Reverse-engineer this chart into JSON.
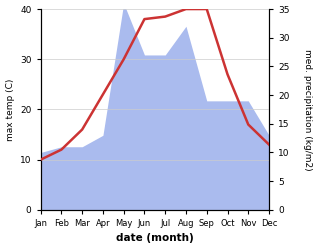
{
  "months": [
    "Jan",
    "Feb",
    "Mar",
    "Apr",
    "May",
    "Jun",
    "Jul",
    "Aug",
    "Sep",
    "Oct",
    "Nov",
    "Dec"
  ],
  "temperature": [
    10,
    12,
    16,
    23,
    30,
    38,
    38.5,
    40,
    40,
    27,
    17,
    13
  ],
  "precipitation": [
    10,
    11,
    11,
    13,
    36,
    27,
    27,
    32,
    19,
    19,
    19,
    13
  ],
  "temp_color": "#cc3333",
  "precip_color": "#aabbee",
  "ylabel_left": "max temp (C)",
  "ylabel_right": "med. precipitation (kg/m2)",
  "xlabel": "date (month)",
  "ylim_left": [
    0,
    40
  ],
  "ylim_right": [
    0,
    35
  ],
  "bg_color": "#ffffff",
  "line_width": 1.8
}
